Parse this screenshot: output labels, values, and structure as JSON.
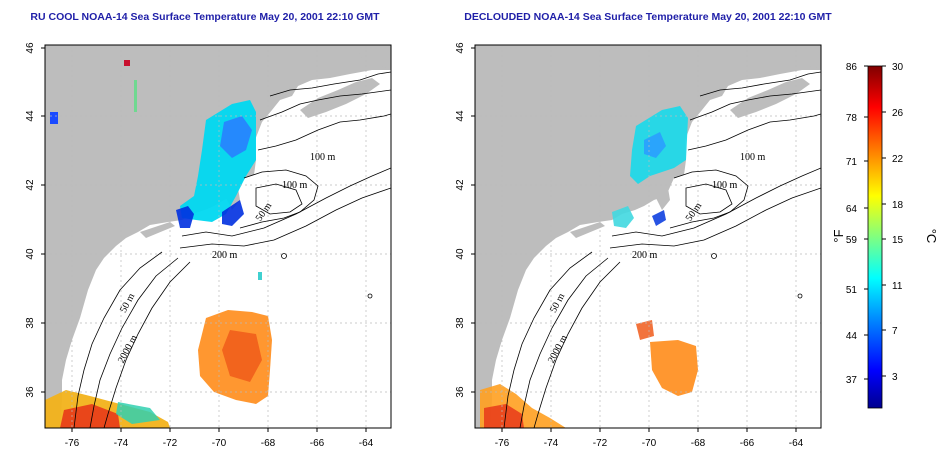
{
  "panels": [
    {
      "title": "RU COOL NOAA-14 Sea Surface Temperature May 20, 2001 22:10 GMT",
      "x_ticks": [
        "-76",
        "-74",
        "-72",
        "-70",
        "-68",
        "-66",
        "-64"
      ],
      "y_ticks": [
        "46",
        "44",
        "42",
        "40",
        "38",
        "36"
      ],
      "contour_labels": [
        "100 m",
        "100 m",
        "50 m",
        "200 m",
        "50 m",
        "2000 m"
      ]
    },
    {
      "title": "DECLOUDED NOAA-14 Sea Surface Temperature May 20, 2001 22:10 GMT",
      "x_ticks": [
        "-76",
        "-74",
        "-72",
        "-70",
        "-68",
        "-66",
        "-64"
      ],
      "y_ticks": [
        "46",
        "44",
        "42",
        "40",
        "38",
        "36"
      ],
      "contour_labels": [
        "100 m",
        "100 m",
        "50 m",
        "200 m",
        "50 m",
        "2000 m"
      ]
    }
  ],
  "colorbar": {
    "fahrenheit_label": "°F",
    "celsius_label": "°C",
    "fahrenheit_ticks": [
      "86",
      "78",
      "71",
      "64",
      "59",
      "51",
      "44",
      "37"
    ],
    "celsius_ticks": [
      "30",
      "26",
      "22",
      "18",
      "15",
      "11",
      "7",
      "3"
    ],
    "colors": [
      "#00008f",
      "#0000ff",
      "#0080ff",
      "#00ffff",
      "#80ff80",
      "#ffff00",
      "#ff8000",
      "#ff0000",
      "#800000"
    ]
  }
}
